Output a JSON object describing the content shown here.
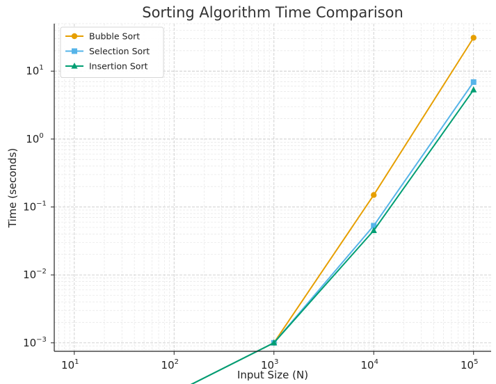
{
  "chart_data": {
    "type": "line",
    "title": "Sorting Algorithm Time Comparison",
    "xlabel": "Input Size (N)",
    "ylabel": "Time (seconds)",
    "xscale": "log",
    "yscale": "log",
    "xlim": [
      6.3,
      150000
    ],
    "ylim": [
      0.00075,
      50
    ],
    "x_ticks": [
      {
        "value": 10,
        "base": "10",
        "exp": "1"
      },
      {
        "value": 100,
        "base": "10",
        "exp": "2"
      },
      {
        "value": 1000,
        "base": "10",
        "exp": "3"
      },
      {
        "value": 10000,
        "base": "10",
        "exp": "4"
      },
      {
        "value": 100000,
        "base": "10",
        "exp": "5"
      }
    ],
    "y_ticks": [
      {
        "value": 0.001,
        "base": "10",
        "exp": "−3"
      },
      {
        "value": 0.01,
        "base": "10",
        "exp": "−2"
      },
      {
        "value": 0.1,
        "base": "10",
        "exp": "−1"
      },
      {
        "value": 1,
        "base": "10",
        "exp": "0"
      },
      {
        "value": 10,
        "base": "10",
        "exp": "1"
      }
    ],
    "grid": true,
    "legend_position": "top-left",
    "x": [
      100,
      1000,
      10000,
      100000
    ],
    "series": [
      {
        "name": "Bubble Sort",
        "color": "#E69F00",
        "marker": "circle",
        "values": [
          0,
          0.001,
          0.15,
          31
        ]
      },
      {
        "name": "Selection Sort",
        "color": "#56B4E9",
        "marker": "square",
        "values": [
          0,
          0.001,
          0.053,
          6.9
        ]
      },
      {
        "name": "Insertion Sort",
        "color": "#009E73",
        "marker": "triangle",
        "values": [
          0,
          0.001,
          0.045,
          5.3
        ]
      }
    ]
  }
}
